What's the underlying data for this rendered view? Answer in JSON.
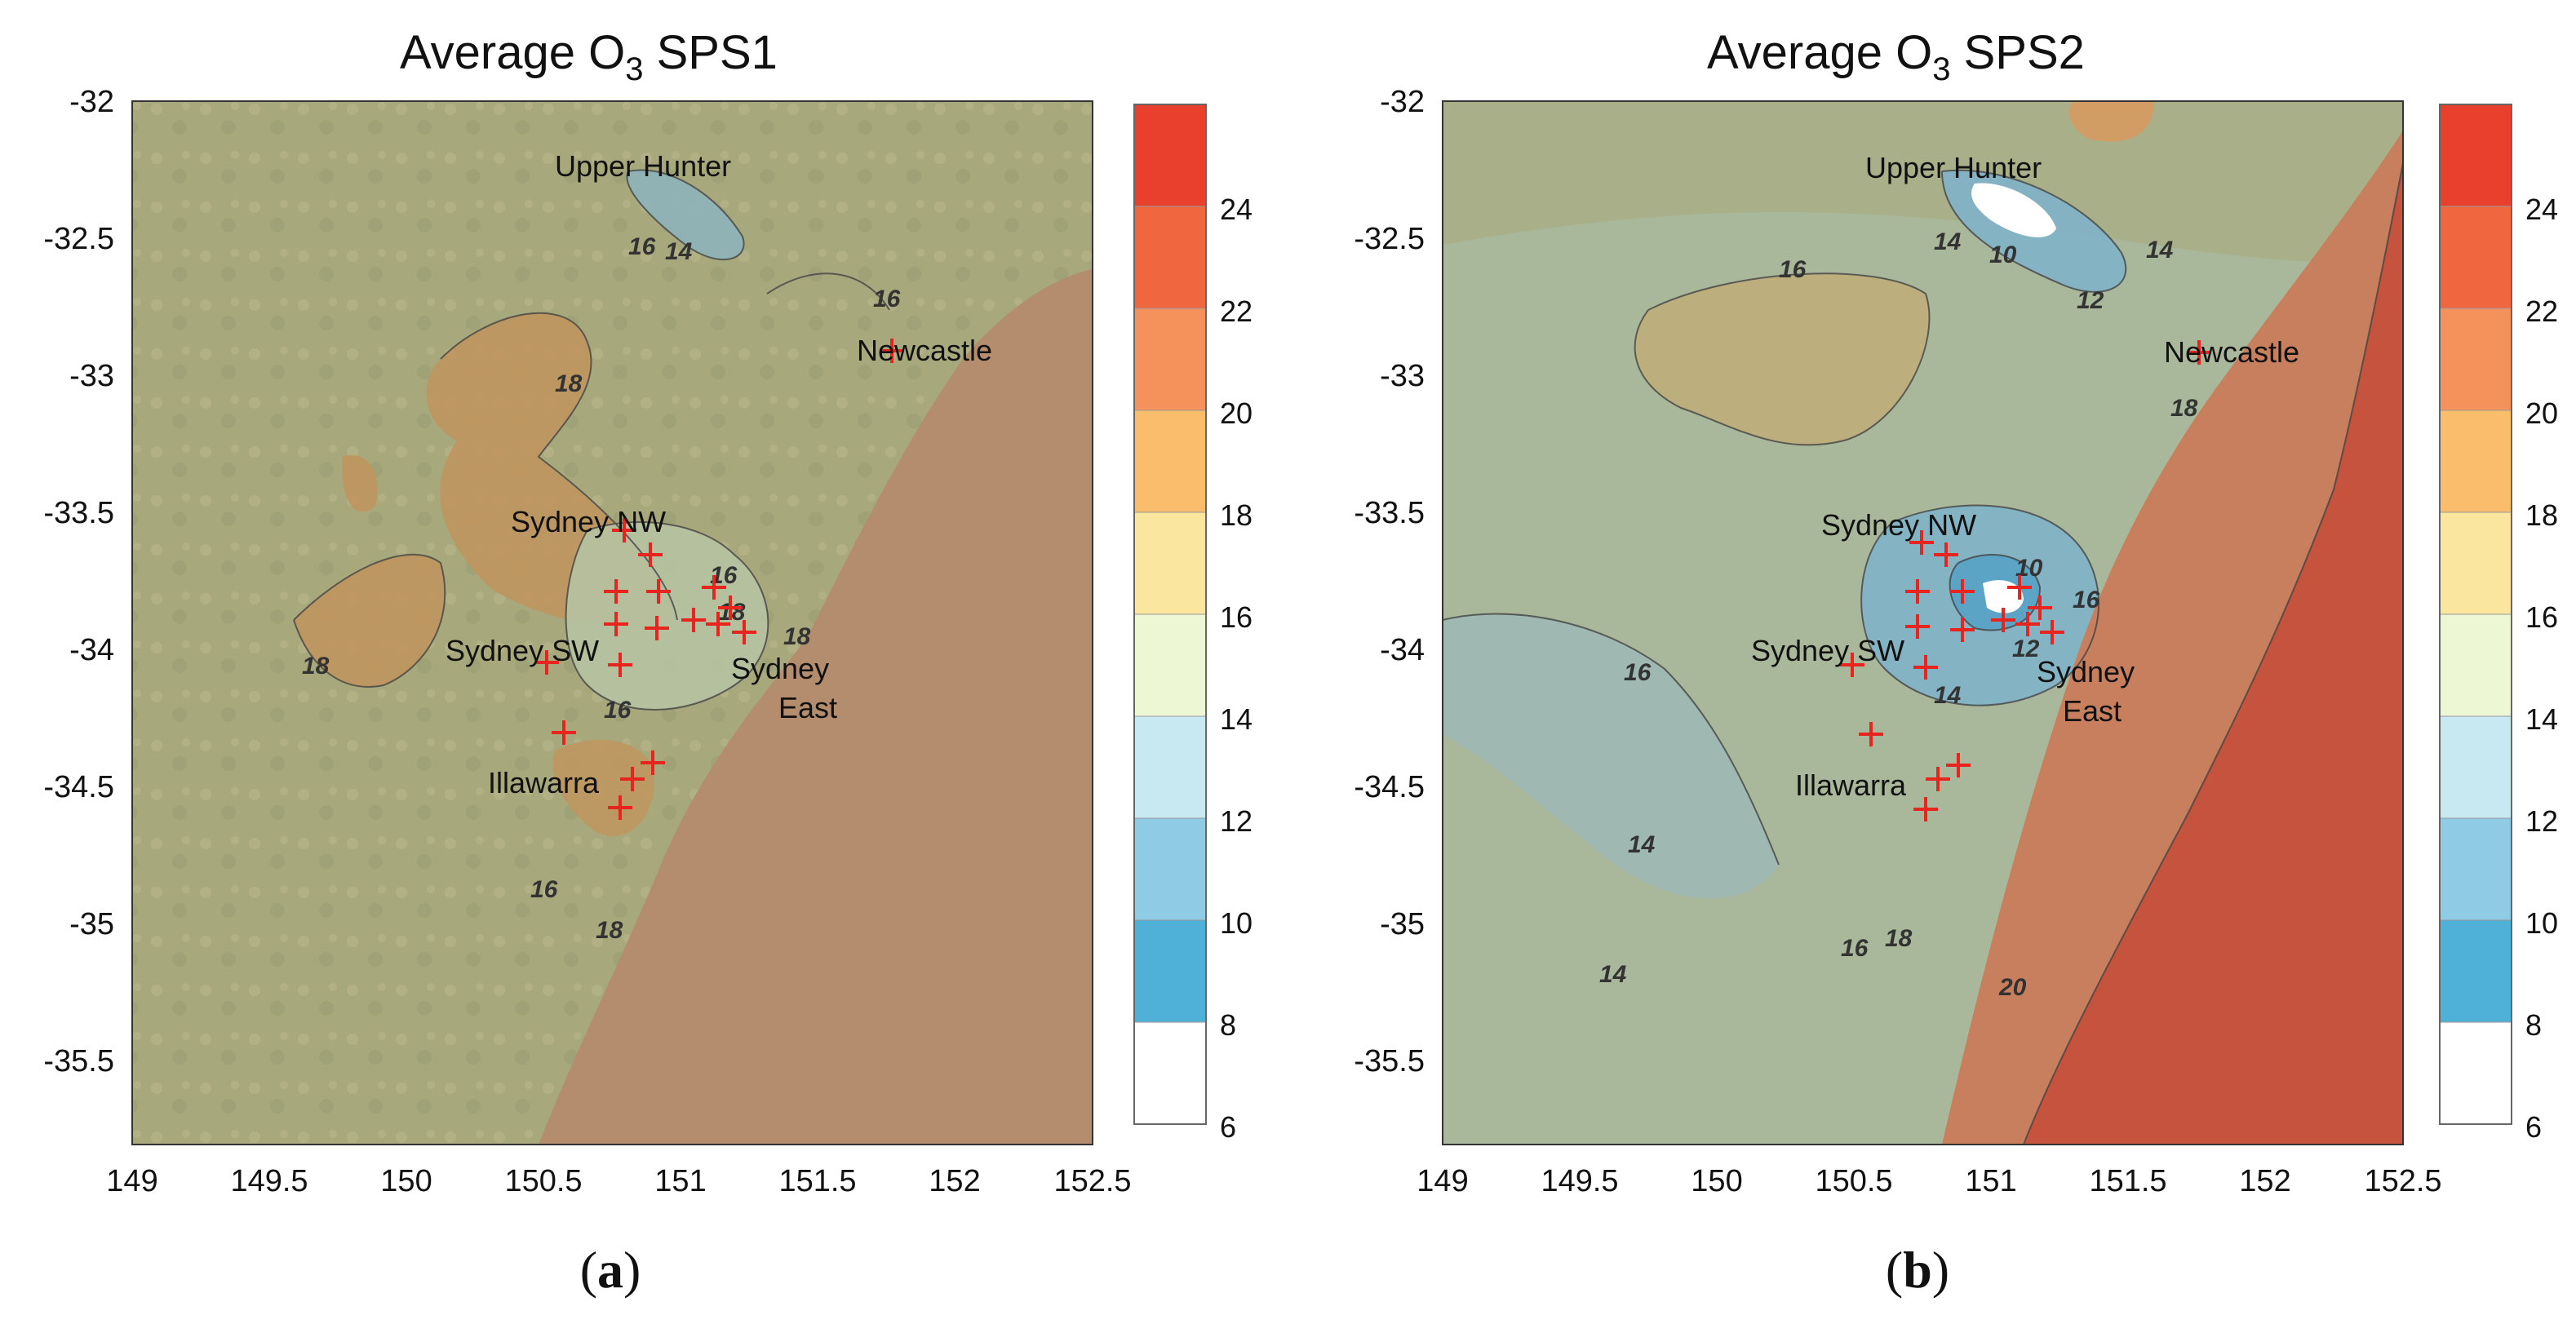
{
  "figure": {
    "panels": [
      {
        "id": "a",
        "title_prefix": "Average O",
        "title_sub": "3",
        "title_suffix": " SPS1",
        "label_open": "(",
        "label_letter": "a",
        "label_close": ")",
        "contour_labels": [
          "16",
          "14",
          "16",
          "18",
          "18",
          "18",
          "16",
          "16",
          "18",
          "18",
          "16"
        ]
      },
      {
        "id": "b",
        "title_prefix": "Average O",
        "title_sub": "3",
        "title_suffix": " SPS2",
        "label_open": "(",
        "label_letter": "b",
        "label_close": ")",
        "contour_labels": [
          "14",
          "10",
          "12",
          "14",
          "16",
          "18",
          "10",
          "16",
          "12",
          "14",
          "16",
          "14",
          "16",
          "18",
          "20",
          "14"
        ]
      }
    ],
    "x_ticks": [
      "149",
      "149.5",
      "150",
      "150.5",
      "151",
      "151.5",
      "152",
      "152.5"
    ],
    "y_ticks": [
      "-32",
      "-32.5",
      "-33",
      "-33.5",
      "-34",
      "-34.5",
      "-35",
      "-35.5"
    ],
    "places": {
      "upper_hunter": "Upper Hunter",
      "newcastle": "Newcastle",
      "sydney_nw": "Sydney NW",
      "sydney_sw": "Sydney SW",
      "sydney_east_1": "Sydney",
      "sydney_east_2": "East",
      "illawarra": "Illawarra"
    },
    "colorbar": {
      "levels": [
        "6",
        "8",
        "10",
        "12",
        "14",
        "16",
        "18",
        "20",
        "22",
        "24"
      ],
      "colors": [
        "#ffffff",
        "#4fb0d8",
        "#8fcbe4",
        "#c8e8f2",
        "#eef7d4",
        "#fbe6a0",
        "#f9bd6c",
        "#f5915a",
        "#f0663e",
        "#e8402c"
      ]
    },
    "colors": {
      "sea_a": "#b48c6e",
      "sea_b_near": "#c77f5e",
      "sea_b_far": "#c6533e",
      "land_base": "#a9ab7f",
      "station_marker": "#e8241e"
    },
    "map_axes": {
      "xlim": [
        149,
        152.5
      ],
      "ylim": [
        -35.8,
        -32
      ]
    }
  }
}
